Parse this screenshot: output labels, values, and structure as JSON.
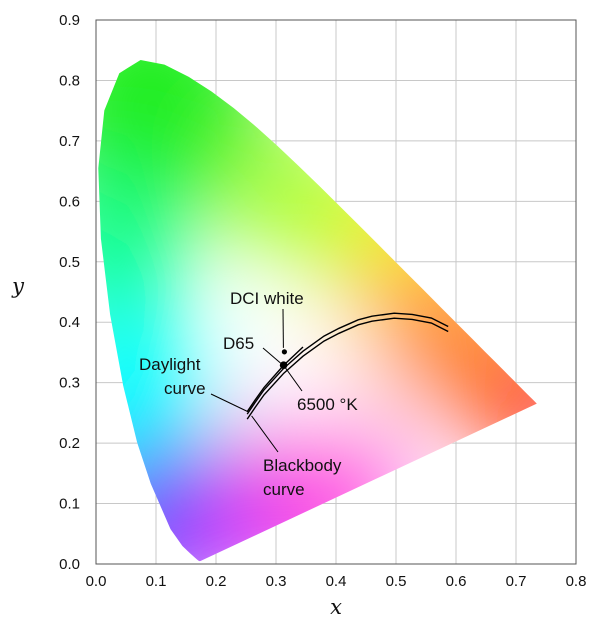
{
  "chart_data": {
    "type": "scatter",
    "title": "",
    "xlabel": "x",
    "ylabel": "y",
    "xlim": [
      0.0,
      0.8
    ],
    "ylim": [
      0.0,
      0.9
    ],
    "grid": true,
    "x_ticks": [
      "0.0",
      "0.1",
      "0.2",
      "0.3",
      "0.4",
      "0.5",
      "0.6",
      "0.7",
      "0.8"
    ],
    "y_ticks": [
      "0.0",
      "0.1",
      "0.2",
      "0.3",
      "0.4",
      "0.5",
      "0.6",
      "0.7",
      "0.8",
      "0.9"
    ],
    "spectral_locus": {
      "x": [
        0.1741,
        0.1738,
        0.1733,
        0.1726,
        0.1714,
        0.1689,
        0.1644,
        0.1566,
        0.144,
        0.1241,
        0.0913,
        0.0687,
        0.0454,
        0.0235,
        0.0082,
        0.0039,
        0.0139,
        0.0389,
        0.0743,
        0.1142,
        0.1547,
        0.1929,
        0.2296,
        0.2658,
        0.3016,
        0.3373,
        0.3731,
        0.4087,
        0.4441,
        0.4788,
        0.5125,
        0.5448,
        0.5752,
        0.6029,
        0.627,
        0.6482,
        0.6658,
        0.6801,
        0.6915,
        0.7006,
        0.7079,
        0.714,
        0.719,
        0.723,
        0.726,
        0.7283,
        0.73,
        0.7347
      ],
      "y": [
        0.005,
        0.0049,
        0.0048,
        0.0048,
        0.0051,
        0.0069,
        0.0109,
        0.0177,
        0.0297,
        0.0578,
        0.1327,
        0.2007,
        0.295,
        0.4127,
        0.5384,
        0.6548,
        0.7502,
        0.812,
        0.8338,
        0.8262,
        0.8059,
        0.7816,
        0.7543,
        0.7243,
        0.6923,
        0.6589,
        0.6245,
        0.5896,
        0.5547,
        0.5202,
        0.4866,
        0.4544,
        0.4242,
        0.3965,
        0.3725,
        0.3514,
        0.334,
        0.3197,
        0.3083,
        0.2993,
        0.292,
        0.2859,
        0.2809,
        0.277,
        0.274,
        0.2717,
        0.27,
        0.2653
      ]
    },
    "blackbody_curve": {
      "x": [
        0.587,
        0.559,
        0.527,
        0.497,
        0.46,
        0.437,
        0.405,
        0.38,
        0.345,
        0.313,
        0.28,
        0.265,
        0.252
      ],
      "y": [
        0.393,
        0.407,
        0.413,
        0.415,
        0.41,
        0.404,
        0.39,
        0.377,
        0.352,
        0.324,
        0.288,
        0.267,
        0.248
      ]
    },
    "daylight_curve": {
      "x": [
        0.345,
        0.313,
        0.28,
        0.265,
        0.252
      ],
      "y": [
        0.359,
        0.329,
        0.292,
        0.271,
        0.252
      ]
    },
    "points": [
      {
        "name": "D65",
        "x": 0.3127,
        "y": 0.329
      },
      {
        "name": "DCI white",
        "x": 0.314,
        "y": 0.351
      }
    ],
    "annotations": {
      "dci_white": "DCI white",
      "d65": "D65",
      "daylight_line1": "Daylight",
      "daylight_line2": "curve",
      "temp_6500": "6500 °K",
      "blackbody_line1": "Blackbody",
      "blackbody_line2": "curve"
    }
  }
}
